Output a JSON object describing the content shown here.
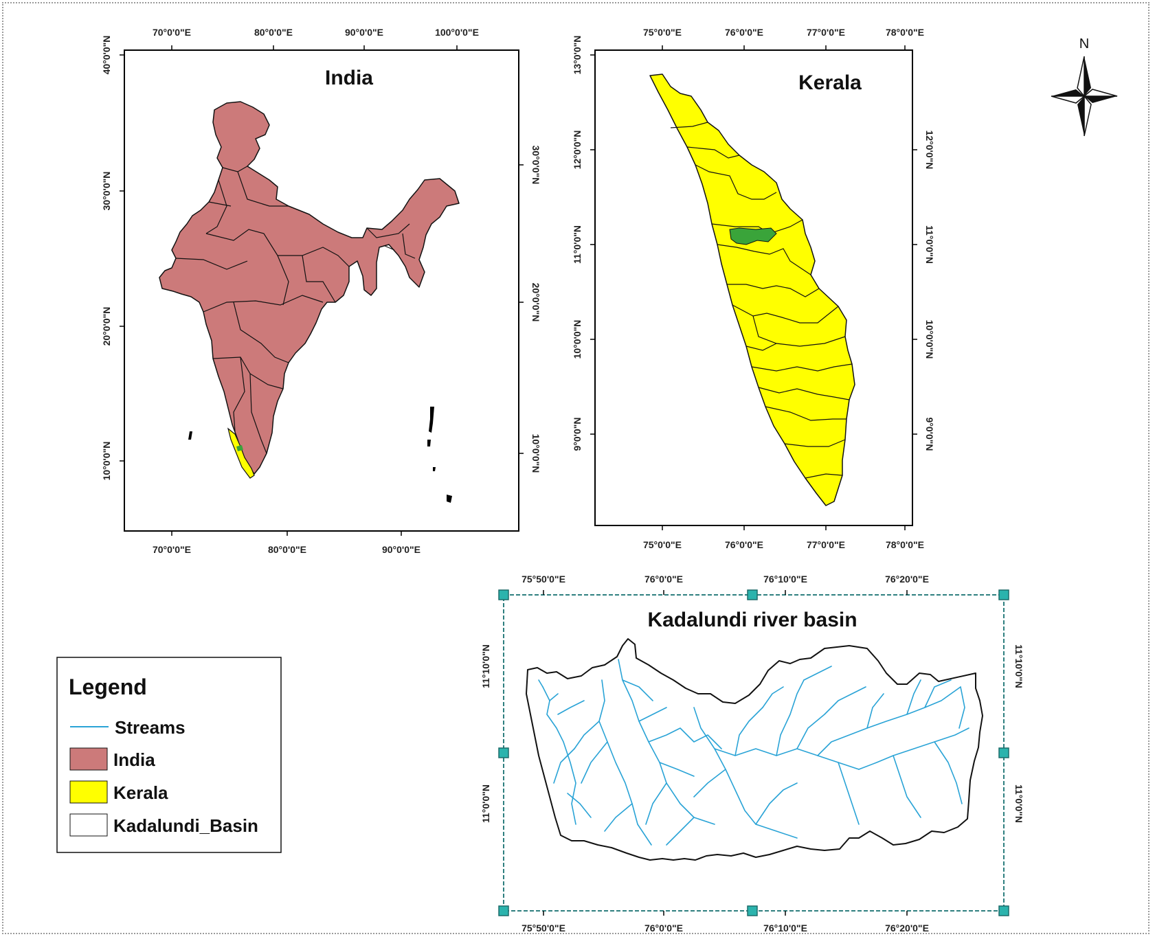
{
  "north_arrow": {
    "label": "N"
  },
  "india_map": {
    "title": "India",
    "top_ticks": [
      "70°0'0\"E",
      "80°0'0\"E",
      "90°0'0\"E",
      "100°0'0\"E"
    ],
    "bottom_ticks": [
      "70°0'0\"E",
      "80°0'0\"E",
      "90°0'0\"E"
    ],
    "left_ticks": [
      "40°0'0\"N",
      "30°0'0\"N",
      "20°0'0\"N",
      "10°0'0\"N"
    ],
    "right_ticks": [
      "30°0'0\"N",
      "20°0'0\"N",
      "10°0'0\"N"
    ],
    "fill_color": "#cc7a7a"
  },
  "kerala_map": {
    "title": "Kerala",
    "top_ticks": [
      "75°0'0\"E",
      "76°0'0\"E",
      "77°0'0\"E",
      "78°0'0\"E"
    ],
    "bottom_ticks": [
      "75°0'0\"E",
      "76°0'0\"E",
      "77°0'0\"E",
      "78°0'0\"E"
    ],
    "left_ticks": [
      "13°0'0\"N",
      "12°0'0\"N",
      "11°0'0\"N",
      "10°0'0\"N",
      "9°0'0\"N"
    ],
    "right_ticks": [
      "12°0'0\"N",
      "11°0'0\"N",
      "10°0'0\"N",
      "9°0'0\"N"
    ],
    "fill_color": "#ffff00",
    "basin_color": "#3aa43a"
  },
  "basin_map": {
    "title": "Kadalundi river basin",
    "top_ticks": [
      "75°50'0\"E",
      "76°0'0\"E",
      "76°10'0\"E",
      "76°20'0\"E"
    ],
    "bottom_ticks": [
      "75°50'0\"E",
      "76°0'0\"E",
      "76°10'0\"E",
      "76°20'0\"E"
    ],
    "left_ticks": [
      "11°10'0\"N",
      "11°0'0\"N"
    ],
    "right_ticks": [
      "11°10'0\"N",
      "11°0'0\"N"
    ],
    "stream_color": "#29a3d6",
    "handle_color": "#2bb3ad"
  },
  "legend": {
    "title": "Legend",
    "items": [
      {
        "label": "Streams",
        "kind": "line",
        "color": "#29a3d6"
      },
      {
        "label": "India",
        "kind": "fill",
        "color": "#cc7a7a"
      },
      {
        "label": "Kerala",
        "kind": "fill",
        "color": "#ffff00"
      },
      {
        "label": "Kadalundi_Basin",
        "kind": "fill",
        "color": "#ffffff"
      }
    ]
  }
}
